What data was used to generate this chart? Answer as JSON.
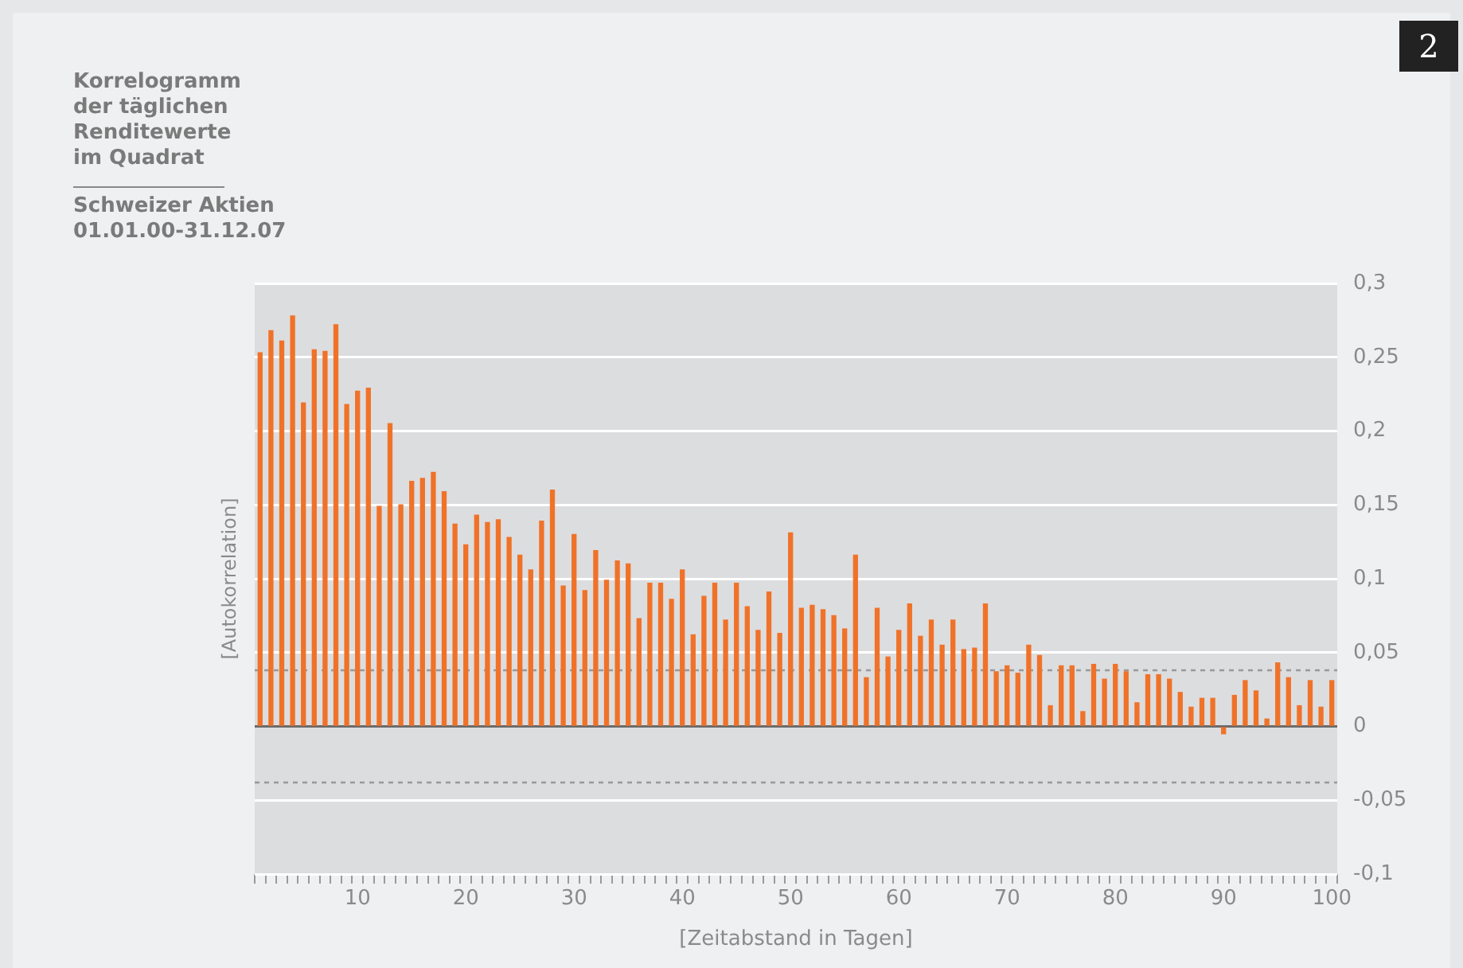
{
  "chart_data": {
    "type": "bar",
    "title": "Korrelogramm\nder täglichen\nRenditewerte\nim Quadrat",
    "subtitle": "Schweizer Aktien\n01.01.00-31.12.07",
    "xlabel": "[Zeitabstand in Tagen]",
    "ylabel": "[Autokorrelation]",
    "annotations": [
      "2"
    ],
    "x": [
      1,
      2,
      3,
      4,
      5,
      6,
      7,
      8,
      9,
      10,
      11,
      12,
      13,
      14,
      15,
      16,
      17,
      18,
      19,
      20,
      21,
      22,
      23,
      24,
      25,
      26,
      27,
      28,
      29,
      30,
      31,
      32,
      33,
      34,
      35,
      36,
      37,
      38,
      39,
      40,
      41,
      42,
      43,
      44,
      45,
      46,
      47,
      48,
      49,
      50,
      51,
      52,
      53,
      54,
      55,
      56,
      57,
      58,
      59,
      60,
      61,
      62,
      63,
      64,
      65,
      66,
      67,
      68,
      69,
      70,
      71,
      72,
      73,
      74,
      75,
      76,
      77,
      78,
      79,
      80,
      81,
      82,
      83,
      84,
      85,
      86,
      87,
      88,
      89,
      90,
      91,
      92,
      93,
      94,
      95,
      96,
      97,
      98,
      99,
      100
    ],
    "values": [
      0.253,
      0.268,
      0.261,
      0.278,
      0.219,
      0.255,
      0.254,
      0.272,
      0.218,
      0.227,
      0.229,
      0.149,
      0.205,
      0.15,
      0.166,
      0.168,
      0.172,
      0.159,
      0.137,
      0.123,
      0.143,
      0.138,
      0.14,
      0.128,
      0.116,
      0.106,
      0.139,
      0.16,
      0.095,
      0.13,
      0.092,
      0.119,
      0.099,
      0.112,
      0.11,
      0.073,
      0.097,
      0.097,
      0.086,
      0.106,
      0.062,
      0.088,
      0.097,
      0.072,
      0.097,
      0.081,
      0.065,
      0.091,
      0.063,
      0.131,
      0.08,
      0.082,
      0.079,
      0.075,
      0.066,
      0.116,
      0.033,
      0.08,
      0.047,
      0.065,
      0.083,
      0.061,
      0.072,
      0.055,
      0.072,
      0.052,
      0.053,
      0.083,
      0.037,
      0.041,
      0.036,
      0.055,
      0.048,
      0.014,
      0.041,
      0.041,
      0.01,
      0.042,
      0.032,
      0.042,
      0.037,
      0.016,
      0.035,
      0.035,
      0.032,
      0.023,
      0.013,
      0.019,
      0.019,
      -0.005,
      0.021,
      0.031,
      0.024,
      0.005,
      0.043,
      0.033,
      0.014,
      0.031,
      0.013,
      0.031
    ],
    "color": "#f07228",
    "xlim": [
      0.5,
      100.5
    ],
    "xticks": [
      {
        "value": 1,
        "label": null
      },
      {
        "value": 2,
        "label": null
      },
      {
        "value": 3,
        "label": null
      },
      {
        "value": 4,
        "label": null
      },
      {
        "value": 5,
        "label": null
      },
      {
        "value": 6,
        "label": null
      },
      {
        "value": 7,
        "label": null
      },
      {
        "value": 8,
        "label": null
      },
      {
        "value": 9,
        "label": null
      },
      10,
      {
        "value": 11,
        "label": null
      },
      {
        "value": 12,
        "label": null
      },
      {
        "value": 13,
        "label": null
      },
      {
        "value": 14,
        "label": null
      },
      {
        "value": 15,
        "label": null
      },
      {
        "value": 16,
        "label": null
      },
      {
        "value": 17,
        "label": null
      },
      {
        "value": 18,
        "label": null
      },
      {
        "value": 19,
        "label": null
      },
      20,
      {
        "value": 21,
        "label": null
      },
      {
        "value": 22,
        "label": null
      },
      {
        "value": 23,
        "label": null
      },
      {
        "value": 24,
        "label": null
      },
      {
        "value": 25,
        "label": null
      },
      {
        "value": 26,
        "label": null
      },
      {
        "value": 27,
        "label": null
      },
      {
        "value": 28,
        "label": null
      },
      {
        "value": 29,
        "label": null
      },
      30,
      {
        "value": 31,
        "label": null
      },
      {
        "value": 32,
        "label": null
      },
      {
        "value": 33,
        "label": null
      },
      {
        "value": 34,
        "label": null
      },
      {
        "value": 35,
        "label": null
      },
      {
        "value": 36,
        "label": null
      },
      {
        "value": 37,
        "label": null
      },
      {
        "value": 38,
        "label": null
      },
      {
        "value": 39,
        "label": null
      },
      40,
      {
        "value": 41,
        "label": null
      },
      {
        "value": 42,
        "label": null
      },
      {
        "value": 43,
        "label": null
      },
      {
        "value": 44,
        "label": null
      },
      {
        "value": 45,
        "label": null
      },
      {
        "value": 46,
        "label": null
      },
      {
        "value": 47,
        "label": null
      },
      {
        "value": 48,
        "label": null
      },
      {
        "value": 49,
        "label": null
      },
      50,
      {
        "value": 51,
        "label": null
      },
      {
        "value": 52,
        "label": null
      },
      {
        "value": 53,
        "label": null
      },
      {
        "value": 54,
        "label": null
      },
      {
        "value": 55,
        "label": null
      },
      {
        "value": 56,
        "label": null
      },
      {
        "value": 57,
        "label": null
      },
      {
        "value": 58,
        "label": null
      },
      {
        "value": 59,
        "label": null
      },
      60,
      {
        "value": 61,
        "label": null
      },
      {
        "value": 62,
        "label": null
      },
      {
        "value": 63,
        "label": null
      },
      {
        "value": 64,
        "label": null
      },
      {
        "value": 65,
        "label": null
      },
      {
        "value": 66,
        "label": null
      },
      {
        "value": 67,
        "label": null
      },
      {
        "value": 68,
        "label": null
      },
      {
        "value": 69,
        "label": null
      },
      70,
      {
        "value": 71,
        "label": null
      },
      {
        "value": 72,
        "label": null
      },
      {
        "value": 73,
        "label": null
      },
      {
        "value": 74,
        "label": null
      },
      {
        "value": 75,
        "label": null
      },
      {
        "value": 76,
        "label": null
      },
      {
        "value": 77,
        "label": null
      },
      {
        "value": 78,
        "label": null
      },
      {
        "value": 79,
        "label": null
      },
      80,
      {
        "value": 81,
        "label": null
      },
      {
        "value": 82,
        "label": null
      },
      {
        "value": 83,
        "label": null
      },
      {
        "value": 84,
        "label": null
      },
      {
        "value": 85,
        "label": null
      },
      {
        "value": 86,
        "label": null
      },
      {
        "value": 87,
        "label": null
      },
      {
        "value": 88,
        "label": null
      },
      {
        "value": 89,
        "label": null
      },
      90,
      {
        "value": 91,
        "label": null
      },
      {
        "value": 92,
        "label": null
      },
      {
        "value": 93,
        "label": null
      },
      {
        "value": 94,
        "label": null
      },
      {
        "value": 95,
        "label": null
      },
      {
        "value": 96,
        "label": null
      },
      {
        "value": 97,
        "label": null
      },
      {
        "value": 98,
        "label": null
      },
      {
        "value": 99,
        "label": null
      },
      100
    ],
    "ylim": [
      -0.1,
      0.3
    ],
    "yticks": [
      {
        "value": -0.1,
        "label": "-0,1"
      },
      {
        "value": -0.05,
        "label": "-0,05"
      },
      0,
      {
        "value": 0.05,
        "label": "0,05"
      },
      {
        "value": 0.1,
        "label": "0,1"
      },
      {
        "value": 0.15,
        "label": "0,15"
      },
      {
        "value": 0.2,
        "label": "0,2"
      },
      {
        "value": 0.25,
        "label": "0,25"
      },
      {
        "value": 0.3,
        "label": "0,3"
      }
    ],
    "grid": "y",
    "ref_lines": [
      {
        "axis": "y",
        "value": 0.038,
        "color": "#999999",
        "line_style": "dashed"
      },
      {
        "axis": "y",
        "value": -0.038,
        "color": "#999999",
        "line_style": "dashed"
      }
    ]
  }
}
